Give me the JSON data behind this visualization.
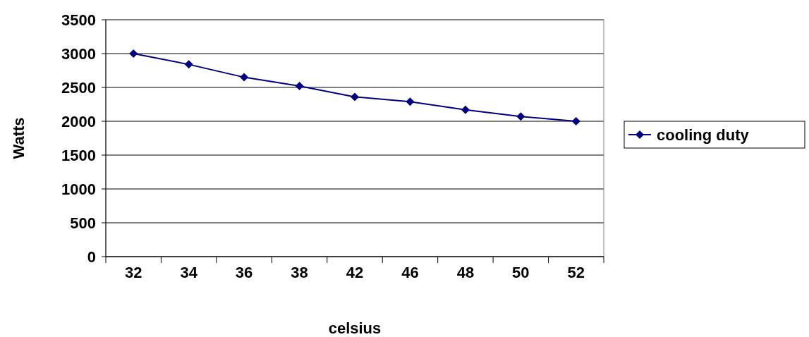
{
  "chart_data": {
    "type": "line",
    "xlabel": "celsius",
    "ylabel": "Watts",
    "categories": [
      "32",
      "34",
      "36",
      "38",
      "42",
      "46",
      "48",
      "50",
      "52"
    ],
    "series": [
      {
        "name": "cooling duty",
        "color": "#000080",
        "values": [
          3000,
          2840,
          2650,
          2520,
          2360,
          2290,
          2170,
          2070,
          2000
        ]
      }
    ],
    "ylim": [
      0,
      3500
    ],
    "yticks": [
      0,
      500,
      1000,
      1500,
      2000,
      2500,
      3000,
      3500
    ],
    "grid": "y",
    "legend": "right",
    "marker": "diamond",
    "line_style": "solid"
  }
}
